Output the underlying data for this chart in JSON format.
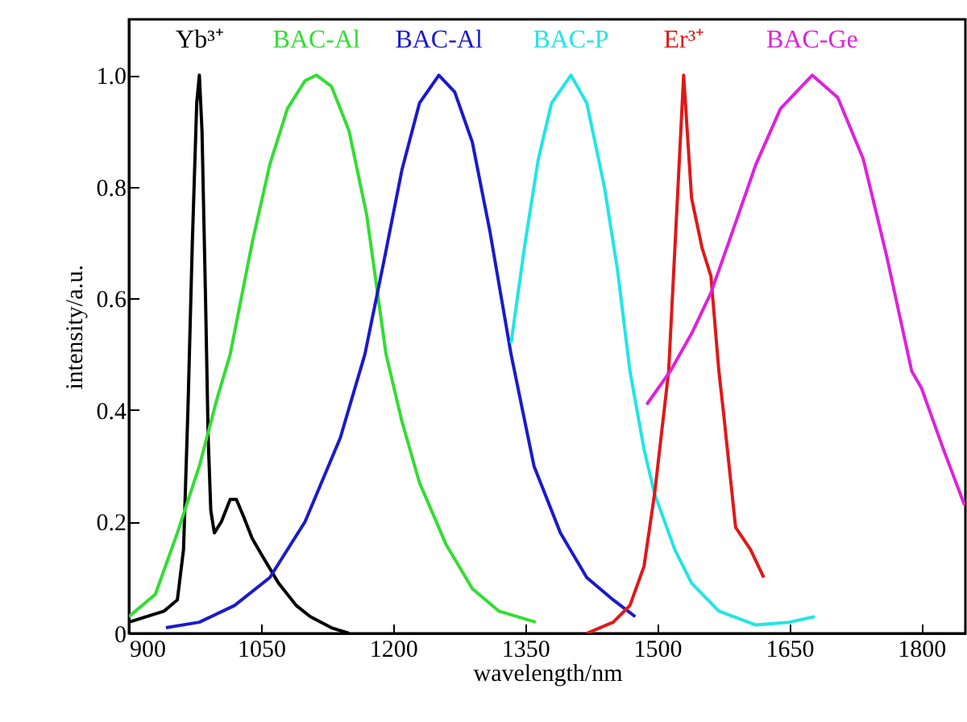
{
  "chart_data": {
    "type": "line",
    "xlabel": "wavelength/nm",
    "ylabel": "intensity/a.u.",
    "xlim": [
      900,
      1850
    ],
    "ylim": [
      0,
      1.1
    ],
    "xticks": [
      900,
      1050,
      1200,
      1350,
      1500,
      1650,
      1800
    ],
    "yticks": [
      0,
      0.2,
      0.4,
      0.6,
      0.8,
      {
        "value": 1,
        "label": "1.0"
      }
    ],
    "series": [
      {
        "name": "Yb³⁺",
        "color": "#000000",
        "x": [
          900,
          940,
          955,
          962,
          967,
          972,
          977,
          980,
          983,
          987,
          990,
          993,
          997,
          1005,
          1015,
          1022,
          1030,
          1040,
          1051,
          1070,
          1090,
          1106,
          1130,
          1150
        ],
        "values": [
          0.02,
          0.04,
          0.06,
          0.15,
          0.4,
          0.7,
          0.95,
          1.0,
          0.9,
          0.6,
          0.35,
          0.22,
          0.18,
          0.2,
          0.24,
          0.24,
          0.21,
          0.17,
          0.14,
          0.09,
          0.05,
          0.03,
          0.01,
          0
        ]
      },
      {
        "name": "BAC-Al",
        "color": "#33dd33",
        "x": [
          900,
          930,
          955,
          980,
          1000,
          1015,
          1040,
          1060,
          1080,
          1100,
          1113,
          1130,
          1150,
          1170,
          1192,
          1210,
          1230,
          1260,
          1290,
          1320,
          1362
        ],
        "values": [
          0.03,
          0.07,
          0.18,
          0.3,
          0.42,
          0.5,
          0.7,
          0.84,
          0.94,
          0.99,
          1.0,
          0.98,
          0.9,
          0.75,
          0.5,
          0.38,
          0.27,
          0.16,
          0.08,
          0.04,
          0.02
        ]
      },
      {
        "name": "BAC-Al",
        "color": "#1a1acc",
        "x": [
          942,
          980,
          1020,
          1060,
          1100,
          1140,
          1168,
          1190,
          1210,
          1230,
          1252,
          1270,
          1290,
          1310,
          1334,
          1360,
          1390,
          1420,
          1450,
          1475
        ],
        "values": [
          0.01,
          0.02,
          0.05,
          0.1,
          0.2,
          0.35,
          0.5,
          0.67,
          0.83,
          0.95,
          1.0,
          0.97,
          0.88,
          0.72,
          0.5,
          0.3,
          0.18,
          0.1,
          0.06,
          0.03
        ]
      },
      {
        "name": "BAC-P",
        "color": "#22e5e5",
        "x": [
          1334,
          1350,
          1365,
          1380,
          1402,
          1420,
          1440,
          1455,
          1469,
          1485,
          1497,
          1520,
          1539,
          1570,
          1612,
          1650,
          1679
        ],
        "values": [
          0.52,
          0.7,
          0.85,
          0.95,
          1.0,
          0.95,
          0.8,
          0.65,
          0.47,
          0.33,
          0.25,
          0.15,
          0.09,
          0.04,
          0.015,
          0.02,
          0.03
        ]
      },
      {
        "name": "Er³⁺",
        "color": "#e01818",
        "x": [
          1420,
          1450,
          1469,
          1485,
          1497,
          1513,
          1522,
          1530,
          1539,
          1551,
          1561,
          1570,
          1575,
          1589,
          1606,
          1621
        ],
        "values": [
          0,
          0.02,
          0.05,
          0.12,
          0.25,
          0.47,
          0.75,
          1.0,
          0.78,
          0.69,
          0.64,
          0.47,
          0.4,
          0.19,
          0.15,
          0.1
        ]
      },
      {
        "name": "BAC-Ge",
        "color": "#dd22dd",
        "x": [
          1488,
          1515,
          1540,
          1561,
          1590,
          1612,
          1640,
          1676,
          1705,
          1734,
          1760,
          1789,
          1800,
          1825,
          1849
        ],
        "values": [
          0.41,
          0.47,
          0.54,
          0.61,
          0.74,
          0.84,
          0.94,
          1.0,
          0.96,
          0.85,
          0.68,
          0.47,
          0.44,
          0.33,
          0.23
        ]
      }
    ]
  }
}
